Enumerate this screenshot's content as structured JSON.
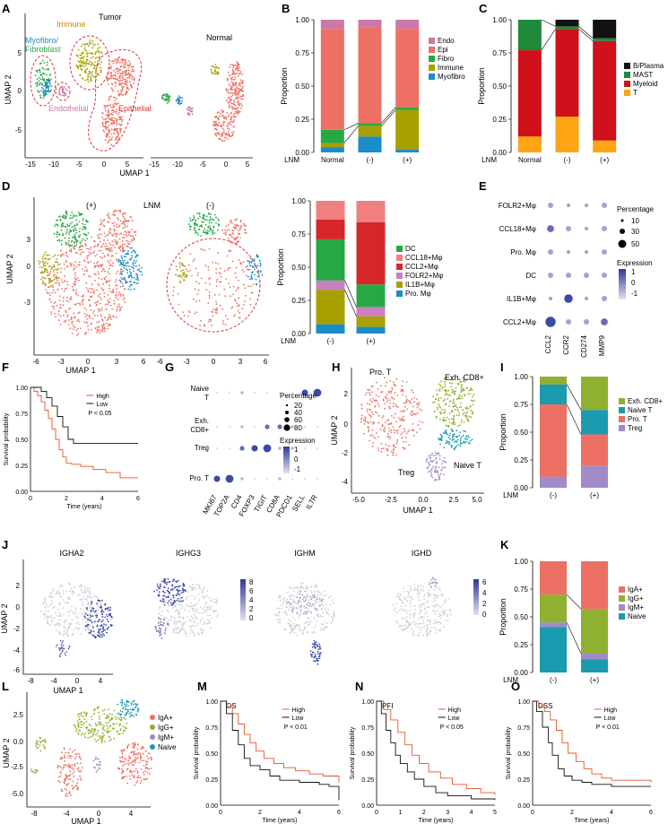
{
  "colors": {
    "endo": "#cc79a7",
    "epi": "#ec7063",
    "fibro": "#27a844",
    "immune": "#a6a000",
    "myofibro": "#1a8cc8",
    "bplasma": "#111111",
    "mast": "#1e8a3a",
    "myeloid": "#d0101a",
    "tcell": "#ffa412",
    "dc": "#27a844",
    "ccl18": "#ec7063",
    "ccl2": "#d62728",
    "folr2": "#ec7063",
    "il1b": "#a6a000",
    "pro": "#1a8cc8",
    "exh": "#8fb030",
    "naive": "#1a9bb0",
    "prot": "#ec7063",
    "treg": "#a28ac8",
    "iga": "#ec7063",
    "igg": "#8fb030",
    "igm": "#a28ac8",
    "ignaive": "#1a9bb0",
    "dot_dark": "#3a4aa8",
    "dot_light": "#c9c2e0",
    "km_high": "#e8542b",
    "km_low": "#111111",
    "grey_cell": "#cfcfd4"
  },
  "panels": {
    "A": "A",
    "B": "B",
    "C": "C",
    "D": "D",
    "E": "E",
    "F": "F",
    "G": "G",
    "H": "H",
    "I": "I",
    "J": "J",
    "K": "K",
    "L": "L",
    "M": "M",
    "N": "N",
    "O": "O"
  },
  "panel_a": {
    "labels": {
      "tumor": "Tumor",
      "normal": "Normal",
      "immune": "Immune",
      "myofibro": "Myofibro/",
      "fibroblast": "Fibroblast",
      "endothelial": "Endothelial",
      "epithelial": "Epithelial"
    },
    "xlabel": "UMAP 1",
    "ylabel": "UMAP 2",
    "xticks_left": [
      "-15",
      "-10",
      "-5",
      "0",
      "5"
    ],
    "xticks_right": [
      "-15",
      "-10",
      "-5",
      "0",
      "5"
    ],
    "yticks": [
      "5",
      "0",
      "-5"
    ]
  },
  "panel_d": {
    "labels": {
      "pos": "(+)",
      "lnm": "LNM",
      "neg": "(-)"
    },
    "xlabel": "UMAP 1",
    "ylabel": "UMAP 2",
    "xticks": [
      "-6",
      "-3",
      "0",
      "3",
      "6",
      "-6",
      "-3",
      "0",
      "3",
      "6"
    ],
    "yticks": [
      "3",
      "0",
      "-3"
    ]
  },
  "panel_e": {
    "rows": [
      "FOLR2+Mφ",
      "CCL18+Mφ",
      "Pro. Mφ",
      "DC",
      "IL1B+Mφ",
      "CCL2+Mφ"
    ],
    "cols": [
      "CCL2",
      "CCR2",
      "CD274",
      "MMP9"
    ],
    "size_title": "Percentage",
    "size_values": [
      "10",
      "30",
      "50"
    ],
    "color_title": "Expression",
    "color_values": [
      "1",
      "0",
      "-1"
    ]
  },
  "panel_g": {
    "rows": [
      "Naive",
      "T",
      "Exh.",
      "CD8+",
      "Treg",
      "Pro. T"
    ],
    "cols": [
      "MKI67",
      "TOP2A",
      "CD4",
      "FOXP3",
      "TIGIT",
      "CD8A",
      "PDCD1",
      "SELL",
      "IL7R"
    ],
    "size_title": "Percentage",
    "size_values": [
      "20",
      "40",
      "60",
      "80"
    ],
    "color_title": "Expression",
    "color_values": [
      "1",
      "0",
      "-1"
    ]
  },
  "panel_h": {
    "labels": {
      "prot": "Pro. T",
      "exh": "Exh. CD8+",
      "treg": "Treg",
      "naive": "Naive T"
    },
    "xlabel": "UMAP 1",
    "ylabel": "UMAP 2",
    "xticks": [
      "-5.0",
      "-2.5",
      "0.0",
      "2.5",
      "5.0"
    ],
    "yticks": [
      "2",
      "0",
      "-2",
      "-4"
    ]
  },
  "panel_j": {
    "titles": [
      "IGHA2",
      "IGHG3",
      "IGHM",
      "IGHD"
    ],
    "xlabel": "UMAP 1",
    "ylabel": "UMAP 2",
    "xticks": [
      "-8",
      "-4",
      "0",
      "4"
    ],
    "yticks": [
      "2",
      "0",
      "-2",
      "-4",
      "-6"
    ],
    "scale1": [
      "8",
      "6",
      "4",
      "2",
      "0"
    ],
    "scale2": [
      "6",
      "4",
      "2",
      "0"
    ]
  },
  "panel_l": {
    "legend": [
      "IgA+",
      "IgG+",
      "IgM+",
      "Naive"
    ],
    "xlabel": "UMAP 1",
    "ylabel": "UMAP 2",
    "xticks": [
      "-8",
      "-4",
      "0",
      "4"
    ],
    "yticks": [
      "2.5",
      "0.0",
      "-2.5",
      "-5.0"
    ]
  },
  "chart_data": [
    {
      "id": "B",
      "type": "bar",
      "categories": [
        "Normal",
        "(-)",
        "(+)"
      ],
      "xlabel": "LNM",
      "ylabel": "Proportion",
      "ylim": [
        0,
        1
      ],
      "yticks": [
        "0.00",
        "0.25",
        "0.50",
        "0.75",
        "1.00"
      ],
      "legend": [
        "Endo",
        "Epi",
        "Fibro",
        "Immune",
        "Myofibro"
      ],
      "series": [
        {
          "name": "Myofibro",
          "values": [
            0.04,
            0.12,
            0.02
          ]
        },
        {
          "name": "Immune",
          "values": [
            0.03,
            0.08,
            0.3
          ]
        },
        {
          "name": "Fibro",
          "values": [
            0.1,
            0.02,
            0.02
          ]
        },
        {
          "name": "Epi",
          "values": [
            0.76,
            0.72,
            0.59
          ]
        },
        {
          "name": "Endo",
          "values": [
            0.07,
            0.06,
            0.07
          ]
        }
      ]
    },
    {
      "id": "C",
      "type": "bar",
      "categories": [
        "Normal",
        "(-)",
        "(+)"
      ],
      "xlabel": "LNM",
      "ylabel": "Proportion",
      "ylim": [
        0,
        1
      ],
      "yticks": [
        "0.00",
        "0.25",
        "0.50",
        "0.75",
        "1.00"
      ],
      "legend": [
        "B/Plasma",
        "MAST",
        "Myeloid",
        "T"
      ],
      "series": [
        {
          "name": "T",
          "values": [
            0.12,
            0.27,
            0.09
          ]
        },
        {
          "name": "Myeloid",
          "values": [
            0.65,
            0.66,
            0.75
          ]
        },
        {
          "name": "MAST",
          "values": [
            0.23,
            0.02,
            0.02
          ]
        },
        {
          "name": "B/Plasma",
          "values": [
            0.0,
            0.05,
            0.14
          ]
        }
      ]
    },
    {
      "id": "D",
      "type": "bar",
      "categories": [
        "(-)",
        "(+)"
      ],
      "xlabel": "LNM",
      "ylabel": "Proportion",
      "ylim": [
        0,
        1
      ],
      "yticks": [
        "0.00",
        "0.25",
        "0.50",
        "0.75",
        "1.00"
      ],
      "legend": [
        "DC",
        "CCL18+Mφ",
        "CCL2+Mφ",
        "FOLR2+Mφ",
        "IL1B+Mφ",
        "Pro. Mφ"
      ],
      "series": [
        {
          "name": "Pro. Mφ",
          "values": [
            0.07,
            0.05
          ]
        },
        {
          "name": "IL1B+Mφ",
          "values": [
            0.26,
            0.08
          ]
        },
        {
          "name": "FOLR2+Mφ",
          "values": [
            0.07,
            0.07
          ]
        },
        {
          "name": "DC",
          "values": [
            0.31,
            0.17
          ]
        },
        {
          "name": "CCL2+Mφ",
          "values": [
            0.15,
            0.47
          ]
        },
        {
          "name": "CCL18+Mφ",
          "values": [
            0.14,
            0.16
          ]
        }
      ]
    },
    {
      "id": "I",
      "type": "bar",
      "categories": [
        "(-)",
        "(+)"
      ],
      "xlabel": "LNM",
      "ylabel": "Proportion",
      "ylim": [
        0,
        1
      ],
      "yticks": [
        "0.00",
        "0.25",
        "0.50",
        "0.75",
        "1.00"
      ],
      "legend": [
        "Exh. CD8+",
        "Naive T",
        "Pro. T",
        "Treg"
      ],
      "series": [
        {
          "name": "Treg",
          "values": [
            0.1,
            0.2
          ]
        },
        {
          "name": "Pro. T",
          "values": [
            0.65,
            0.28
          ]
        },
        {
          "name": "Naive T",
          "values": [
            0.18,
            0.22
          ]
        },
        {
          "name": "Exh. CD8+",
          "values": [
            0.07,
            0.3
          ]
        }
      ]
    },
    {
      "id": "K",
      "type": "bar",
      "categories": [
        "(-)",
        "(+)"
      ],
      "xlabel": "LNM",
      "ylabel": "Proportion",
      "ylim": [
        0,
        1
      ],
      "yticks": [
        "0.00",
        "0.25",
        "0.50",
        "0.75",
        "1.00"
      ],
      "legend": [
        "IgA+",
        "IgG+",
        "IgM+",
        "Naive"
      ],
      "series": [
        {
          "name": "Naive",
          "values": [
            0.41,
            0.12
          ]
        },
        {
          "name": "IgM+",
          "values": [
            0.04,
            0.05
          ]
        },
        {
          "name": "IgG+",
          "values": [
            0.25,
            0.4
          ]
        },
        {
          "name": "IgA+",
          "values": [
            0.3,
            0.43
          ]
        }
      ]
    },
    {
      "id": "F",
      "type": "line",
      "title": "",
      "xlabel": "Time (years)",
      "ylabel": "Survival probability",
      "xlim": [
        0,
        6
      ],
      "ylim": [
        0,
        1
      ],
      "xticks": [
        "0",
        "2",
        "4",
        "6"
      ],
      "yticks": [
        "0.00",
        "0.25",
        "0.50",
        "0.75",
        "1.00"
      ],
      "legend": [
        "High",
        "Low"
      ],
      "pvalue": "P < 0.05",
      "series": [
        {
          "name": "High",
          "x": [
            0,
            0.2,
            0.4,
            0.6,
            0.8,
            1.0,
            1.2,
            1.4,
            1.6,
            1.8,
            2.0,
            2.3,
            2.8,
            3.5,
            4.2,
            5.0,
            6.0
          ],
          "y": [
            1,
            0.96,
            0.92,
            0.86,
            0.78,
            0.7,
            0.6,
            0.5,
            0.4,
            0.33,
            0.27,
            0.26,
            0.24,
            0.21,
            0.18,
            0.13,
            0.13
          ]
        },
        {
          "name": "Low",
          "x": [
            0,
            0.6,
            0.9,
            1.2,
            1.5,
            1.8,
            2.1,
            2.4,
            6.0
          ],
          "y": [
            1,
            0.96,
            0.9,
            0.82,
            0.72,
            0.62,
            0.5,
            0.46,
            0.46
          ]
        }
      ]
    },
    {
      "id": "M",
      "type": "line",
      "title": "OS",
      "xlabel": "Time (years)",
      "ylabel": "Survival probability",
      "xlim": [
        0,
        6
      ],
      "ylim": [
        0,
        1
      ],
      "xticks": [
        "0",
        "2",
        "4",
        "6"
      ],
      "yticks": [
        "0.00",
        "0.25",
        "0.50",
        "0.75",
        "1.00"
      ],
      "legend": [
        "High",
        "Low"
      ],
      "pvalue": "P < 0.01",
      "series": [
        {
          "name": "High",
          "x": [
            0,
            0.3,
            0.6,
            0.9,
            1.2,
            1.5,
            1.8,
            2.2,
            2.7,
            3.2,
            3.8,
            4.5,
            5.2,
            6.0
          ],
          "y": [
            1,
            0.95,
            0.88,
            0.78,
            0.68,
            0.6,
            0.52,
            0.45,
            0.4,
            0.36,
            0.33,
            0.3,
            0.28,
            0.22
          ]
        },
        {
          "name": "Low",
          "x": [
            0,
            0.3,
            0.6,
            0.9,
            1.2,
            1.5,
            2.0,
            2.5,
            3.0,
            4.0,
            5.0,
            5.5,
            6.0
          ],
          "y": [
            1,
            0.88,
            0.72,
            0.58,
            0.45,
            0.38,
            0.34,
            0.28,
            0.24,
            0.22,
            0.2,
            0.18,
            0.05
          ]
        }
      ]
    },
    {
      "id": "N",
      "type": "line",
      "title": "PFI",
      "xlabel": "Time (years)",
      "ylabel": "Survival probability",
      "xlim": [
        0,
        5
      ],
      "ylim": [
        0,
        1
      ],
      "xticks": [
        "0",
        "1",
        "2",
        "3",
        "4",
        "5"
      ],
      "yticks": [
        "0.00",
        "0.25",
        "0.50",
        "0.75",
        "1.00"
      ],
      "legend": [
        "High",
        "Low"
      ],
      "pvalue": "P < 0.05",
      "series": [
        {
          "name": "High",
          "x": [
            0,
            0.3,
            0.6,
            0.9,
            1.2,
            1.5,
            1.8,
            2.2,
            2.7,
            3.2,
            3.8,
            4.4,
            5.0
          ],
          "y": [
            1,
            0.92,
            0.82,
            0.7,
            0.58,
            0.48,
            0.4,
            0.32,
            0.26,
            0.2,
            0.16,
            0.12,
            0.1
          ]
        },
        {
          "name": "Low",
          "x": [
            0,
            0.2,
            0.4,
            0.6,
            0.8,
            1.0,
            1.3,
            1.6,
            2.0,
            2.5,
            3.0,
            4.0,
            5.0
          ],
          "y": [
            1,
            0.88,
            0.72,
            0.6,
            0.48,
            0.4,
            0.32,
            0.25,
            0.18,
            0.12,
            0.09,
            0.06,
            0.05
          ]
        }
      ]
    },
    {
      "id": "O",
      "type": "line",
      "title": "DSS",
      "xlabel": "Time (years)",
      "ylabel": "Survival probability",
      "xlim": [
        0,
        6
      ],
      "ylim": [
        0,
        1
      ],
      "xticks": [
        "0",
        "2",
        "4",
        "6"
      ],
      "yticks": [
        "0.00",
        "0.25",
        "0.50",
        "0.75",
        "1.00"
      ],
      "legend": [
        "High",
        "Low"
      ],
      "pvalue": "P < 0.01",
      "series": [
        {
          "name": "High",
          "x": [
            0,
            0.3,
            0.6,
            0.9,
            1.2,
            1.5,
            1.8,
            2.2,
            2.6,
            3.0,
            3.5,
            4.0,
            6.0
          ],
          "y": [
            1,
            0.95,
            0.9,
            0.82,
            0.72,
            0.6,
            0.5,
            0.42,
            0.35,
            0.3,
            0.26,
            0.24,
            0.22
          ]
        },
        {
          "name": "Low",
          "x": [
            0,
            0.2,
            0.5,
            0.8,
            1.0,
            1.3,
            1.6,
            2.0,
            2.5,
            3.0,
            4.0,
            6.0
          ],
          "y": [
            1,
            0.9,
            0.75,
            0.6,
            0.48,
            0.35,
            0.28,
            0.24,
            0.22,
            0.2,
            0.18,
            0.18
          ]
        }
      ]
    }
  ]
}
